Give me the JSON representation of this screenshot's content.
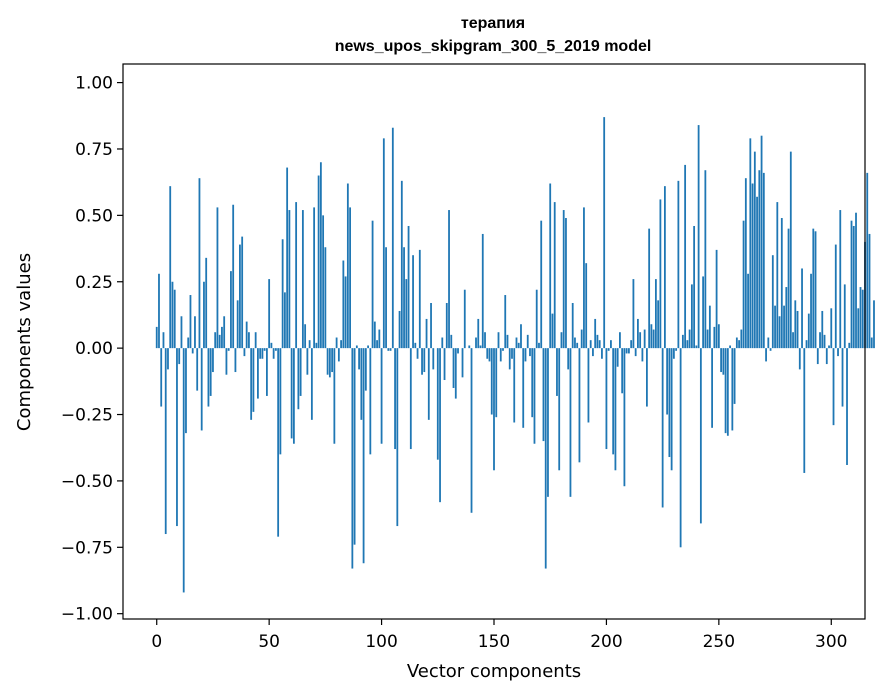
{
  "chart_data": {
    "type": "bar",
    "title": "терапия",
    "subtitle": "news_upos_skipgram_300_5_2019 model",
    "xlabel": "Vector components",
    "ylabel": "Components values",
    "xlim": [
      -15,
      315
    ],
    "ylim": [
      -1.02,
      1.07
    ],
    "xticks": [
      0,
      50,
      100,
      150,
      200,
      250,
      300
    ],
    "xtick_labels": [
      "0",
      "50",
      "100",
      "150",
      "200",
      "250",
      "300"
    ],
    "yticks": [
      -1.0,
      -0.75,
      -0.5,
      -0.25,
      0.0,
      0.25,
      0.5,
      0.75,
      1.0
    ],
    "ytick_labels": [
      "−1.00",
      "−0.75",
      "−0.50",
      "−0.25",
      "0.00",
      "0.25",
      "0.50",
      "0.75",
      "1.00"
    ],
    "bar_color": "#1f77b4",
    "bar_width": 0.8,
    "grid": false,
    "values": [
      0.08,
      0.28,
      -0.22,
      0.06,
      -0.7,
      -0.08,
      0.61,
      0.25,
      0.22,
      -0.67,
      -0.06,
      0.12,
      -0.92,
      -0.32,
      0.04,
      0.2,
      -0.02,
      0.12,
      -0.16,
      0.64,
      -0.31,
      0.25,
      0.34,
      -0.22,
      -0.18,
      -0.09,
      0.06,
      0.53,
      0.05,
      0.08,
      0.12,
      -0.1,
      -0.01,
      0.29,
      0.54,
      -0.09,
      0.18,
      0.39,
      0.42,
      -0.03,
      0.1,
      0.06,
      -0.27,
      -0.24,
      0.06,
      -0.19,
      -0.04,
      -0.04,
      -0.01,
      -0.18,
      0.26,
      0.02,
      -0.04,
      -0.01,
      -0.71,
      -0.4,
      0.41,
      0.21,
      0.68,
      0.52,
      -0.34,
      -0.36,
      0.55,
      -0.23,
      -0.18,
      0.52,
      0.09,
      -0.1,
      0.03,
      -0.27,
      0.53,
      0.02,
      0.65,
      0.7,
      0.5,
      0.38,
      -0.1,
      -0.11,
      -0.09,
      -0.36,
      0.04,
      -0.05,
      0.03,
      0.33,
      0.27,
      0.62,
      0.53,
      -0.83,
      -0.74,
      0.01,
      -0.08,
      -0.27,
      -0.81,
      -0.16,
      0.01,
      -0.4,
      0.48,
      0.1,
      0.03,
      0.07,
      -0.36,
      0.79,
      0.38,
      -0.01,
      -0.01,
      0.83,
      -0.38,
      -0.67,
      0.14,
      0.63,
      0.38,
      0.26,
      0.46,
      -0.38,
      0.35,
      0.02,
      -0.04,
      0.37,
      -0.1,
      -0.09,
      0.11,
      -0.27,
      0.17,
      -0.08,
      0.0,
      -0.42,
      -0.58,
      0.04,
      -0.12,
      0.17,
      0.52,
      0.05,
      -0.15,
      -0.19,
      -0.02,
      0.0,
      -0.11,
      0.22,
      0.0,
      0.01,
      -0.62,
      0.0,
      0.04,
      0.11,
      0.01,
      0.43,
      0.06,
      -0.04,
      -0.05,
      -0.25,
      -0.46,
      -0.26,
      0.06,
      -0.05,
      -0.01,
      0.2,
      0.05,
      -0.08,
      -0.04,
      -0.28,
      0.04,
      0.02,
      0.09,
      -0.3,
      -0.05,
      0.05,
      -0.03,
      -0.26,
      -0.36,
      0.22,
      0.02,
      0.48,
      -0.35,
      -0.83,
      -0.56,
      0.62,
      0.13,
      0.55,
      -0.18,
      -0.46,
      0.06,
      0.52,
      0.49,
      -0.08,
      -0.56,
      0.17,
      0.04,
      0.02,
      -0.43,
      0.07,
      0.53,
      0.32,
      -0.28,
      0.03,
      -0.03,
      0.11,
      0.05,
      0.03,
      -0.04,
      0.87,
      -0.38,
      -0.01,
      0.03,
      -0.4,
      -0.46,
      -0.07,
      0.06,
      -0.17,
      -0.52,
      -0.02,
      -0.02,
      0.03,
      0.26,
      -0.03,
      0.11,
      0.06,
      -0.05,
      0.07,
      -0.22,
      0.45,
      0.09,
      0.07,
      0.26,
      0.18,
      0.56,
      -0.6,
      0.61,
      -0.25,
      -0.41,
      -0.46,
      -0.04,
      -0.01,
      0.63,
      -0.75,
      0.05,
      0.69,
      0.03,
      0.07,
      0.24,
      0.46,
      0.01,
      0.84,
      -0.66,
      0.27,
      0.67,
      0.07,
      0.16,
      -0.3,
      0.08,
      0.37,
      0.09,
      -0.09,
      -0.1,
      -0.32,
      -0.33,
      0.01,
      -0.31,
      -0.21,
      0.04,
      0.03,
      0.07,
      0.48,
      0.64,
      0.28,
      0.79,
      0.62,
      0.74,
      0.57,
      0.67,
      0.8,
      0.66,
      -0.05,
      0.04,
      -0.01,
      0.35,
      0.16,
      0.55,
      0.12,
      0.49,
      0.16,
      0.23,
      0.45,
      0.74,
      0.06,
      0.18,
      0.14,
      -0.08,
      0.3,
      -0.47,
      0.03,
      0.13,
      0.28,
      0.45,
      0.44,
      -0.06,
      0.06,
      0.14,
      0.05,
      -0.06,
      0.01,
      0.15,
      -0.29,
      0.39,
      -0.03,
      0.52,
      -0.22,
      0.24,
      -0.44,
      0.02,
      0.48,
      0.46,
      0.51,
      0.15,
      0.23,
      0.22,
      0.4,
      0.66,
      0.43,
      0.04,
      0.18
    ]
  }
}
